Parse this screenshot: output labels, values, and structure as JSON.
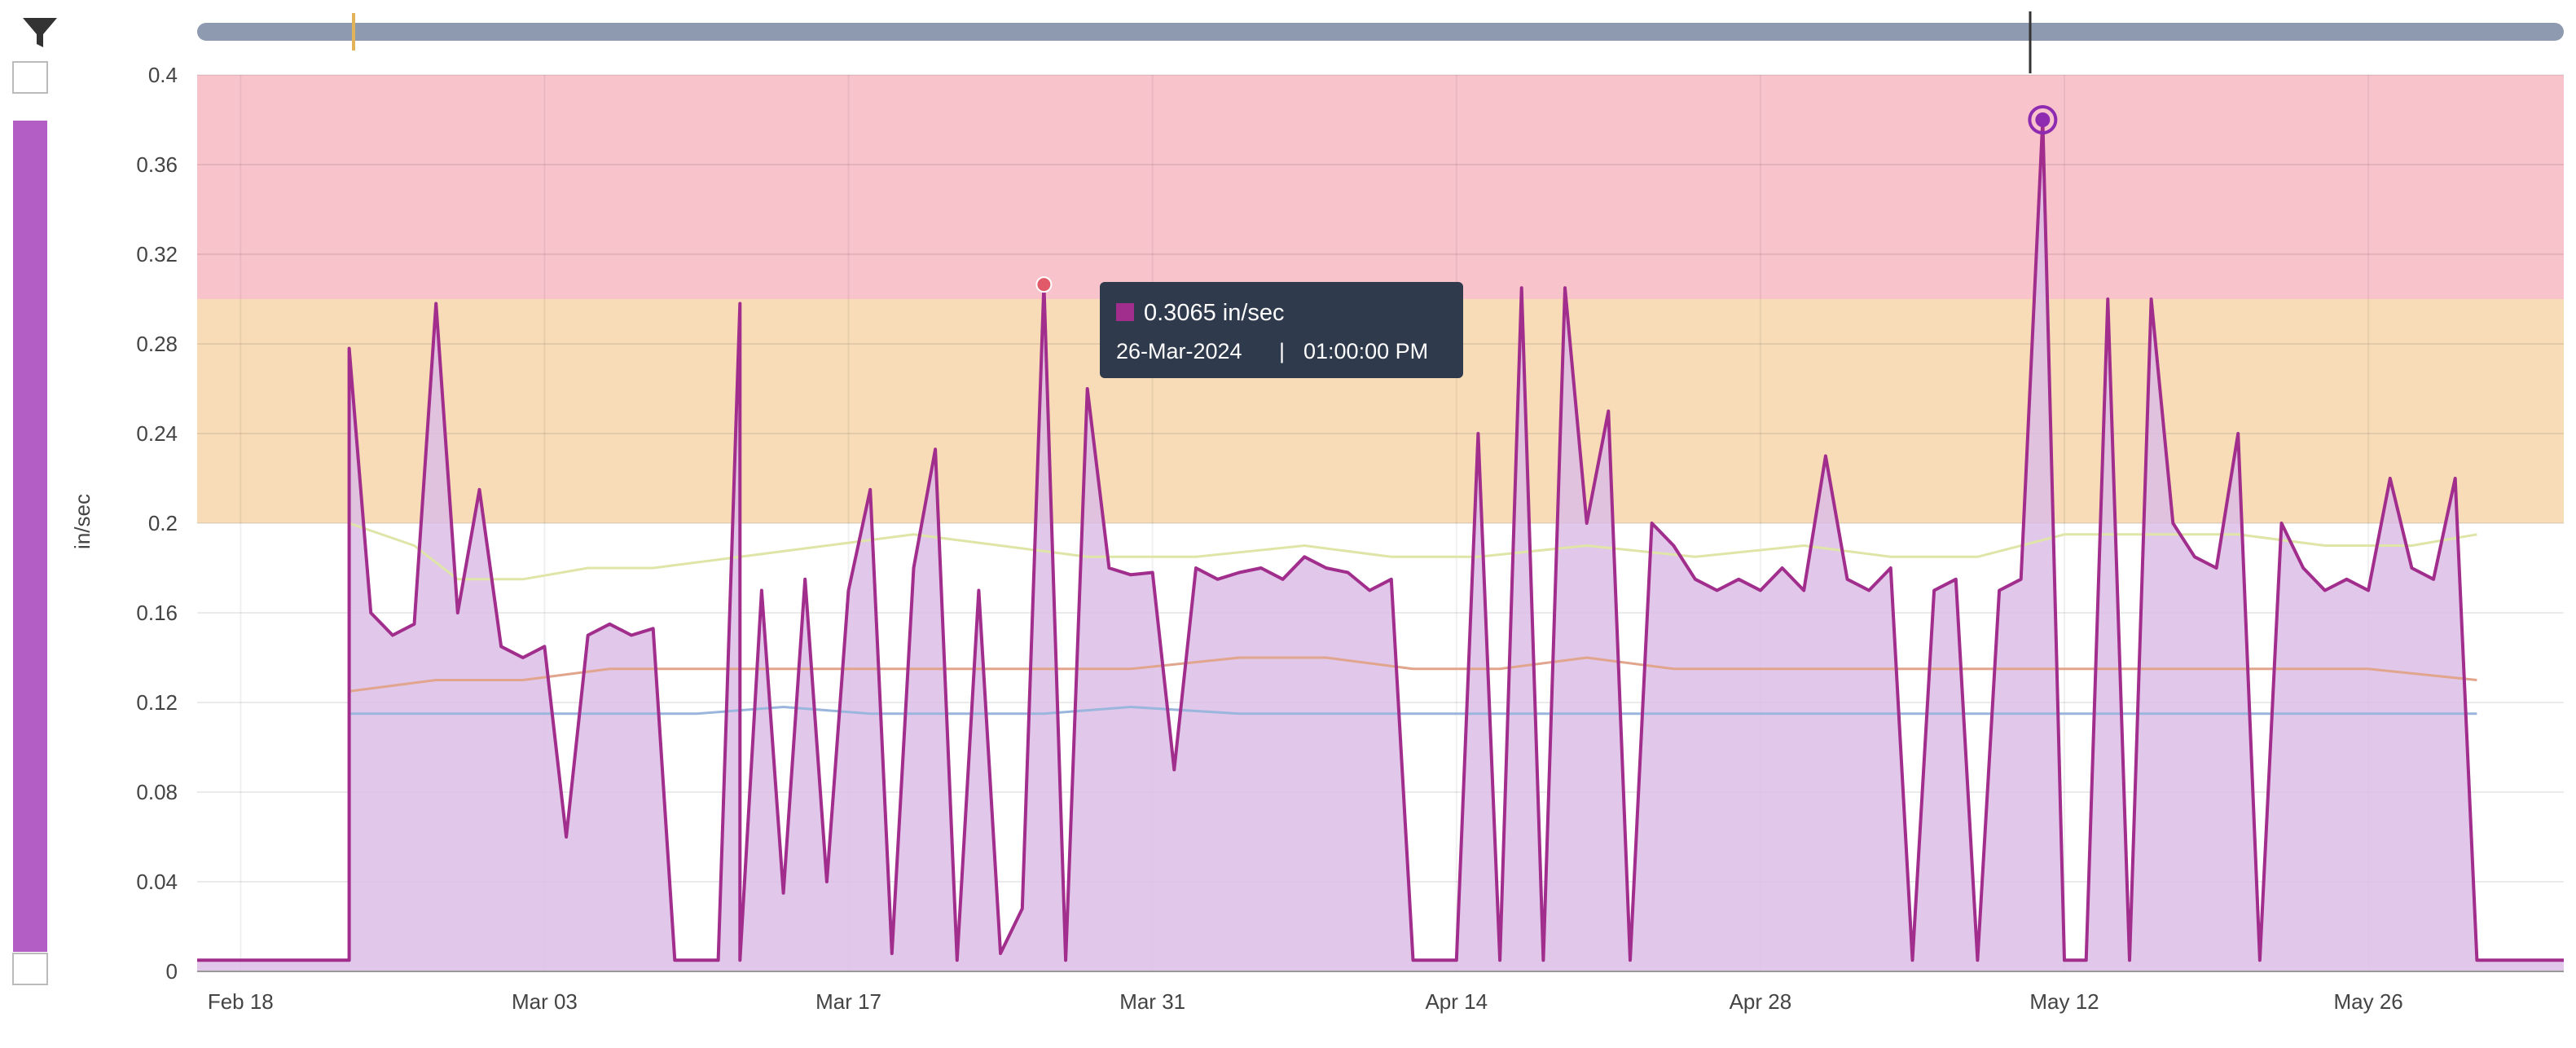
{
  "chart_data": {
    "type": "area",
    "ylabel": "in/sec",
    "ylim": [
      0,
      0.4
    ],
    "yticks": [
      "0",
      "0.04",
      "0.08",
      "0.12",
      "0.16",
      "0.2",
      "0.24",
      "0.28",
      "0.32",
      "0.36",
      "0.4"
    ],
    "xlim": [
      "2024-02-16",
      "2024-06-04"
    ],
    "xticks": [
      {
        "label": "Feb 18",
        "date": "2024-02-18"
      },
      {
        "label": "Mar 03",
        "date": "2024-03-03"
      },
      {
        "label": "Mar 17",
        "date": "2024-03-17"
      },
      {
        "label": "Mar 31",
        "date": "2024-03-31"
      },
      {
        "label": "Apr 14",
        "date": "2024-04-14"
      },
      {
        "label": "Apr 28",
        "date": "2024-04-28"
      },
      {
        "label": "May 12",
        "date": "2024-05-12"
      },
      {
        "label": "May 26",
        "date": "2024-05-26"
      }
    ],
    "bands": [
      {
        "from": 0.3,
        "to": 0.4,
        "color": "#f9c3cc"
      },
      {
        "from": 0.2,
        "to": 0.3,
        "color": "#f7dcb7"
      }
    ],
    "grid": true,
    "series": [
      {
        "color": "#a12d8c",
        "fill": "#dcbde5",
        "points": [
          [
            "2024-02-16",
            0.005
          ],
          [
            "2024-02-19",
            0.005
          ],
          [
            "2024-02-23",
            0.005
          ],
          [
            "2024-02-23",
            0.278
          ],
          [
            "2024-02-24",
            0.16
          ],
          [
            "2024-02-25",
            0.15
          ],
          [
            "2024-02-26",
            0.155
          ],
          [
            "2024-02-27",
            0.298
          ],
          [
            "2024-02-28",
            0.16
          ],
          [
            "2024-02-29",
            0.215
          ],
          [
            "2024-03-01",
            0.145
          ],
          [
            "2024-03-02",
            0.14
          ],
          [
            "2024-03-03",
            0.145
          ],
          [
            "2024-03-04",
            0.06
          ],
          [
            "2024-03-05",
            0.15
          ],
          [
            "2024-03-06",
            0.155
          ],
          [
            "2024-03-07",
            0.15
          ],
          [
            "2024-03-08",
            0.153
          ],
          [
            "2024-03-09",
            0.005
          ],
          [
            "2024-03-10",
            0.005
          ],
          [
            "2024-03-11",
            0.005
          ],
          [
            "2024-03-12",
            0.298
          ],
          [
            "2024-03-12",
            0.005
          ],
          [
            "2024-03-13",
            0.17
          ],
          [
            "2024-03-14",
            0.035
          ],
          [
            "2024-03-15",
            0.175
          ],
          [
            "2024-03-16",
            0.04
          ],
          [
            "2024-03-17",
            0.17
          ],
          [
            "2024-03-18",
            0.215
          ],
          [
            "2024-03-19",
            0.008
          ],
          [
            "2024-03-20",
            0.18
          ],
          [
            "2024-03-21",
            0.233
          ],
          [
            "2024-03-22",
            0.005
          ],
          [
            "2024-03-23",
            0.17
          ],
          [
            "2024-03-24",
            0.008
          ],
          [
            "2024-03-25",
            0.028
          ],
          [
            "2024-03-26",
            0.3065
          ],
          [
            "2024-03-27",
            0.005
          ],
          [
            "2024-03-28",
            0.26
          ],
          [
            "2024-03-29",
            0.18
          ],
          [
            "2024-03-30",
            0.177
          ],
          [
            "2024-03-31",
            0.178
          ],
          [
            "2024-04-01",
            0.09
          ],
          [
            "2024-04-02",
            0.18
          ],
          [
            "2024-04-03",
            0.175
          ],
          [
            "2024-04-04",
            0.178
          ],
          [
            "2024-04-05",
            0.18
          ],
          [
            "2024-04-06",
            0.175
          ],
          [
            "2024-04-07",
            0.185
          ],
          [
            "2024-04-08",
            0.18
          ],
          [
            "2024-04-09",
            0.178
          ],
          [
            "2024-04-10",
            0.17
          ],
          [
            "2024-04-11",
            0.175
          ],
          [
            "2024-04-12",
            0.005
          ],
          [
            "2024-04-13",
            0.005
          ],
          [
            "2024-04-14",
            0.005
          ],
          [
            "2024-04-15",
            0.24
          ],
          [
            "2024-04-16",
            0.005
          ],
          [
            "2024-04-17",
            0.305
          ],
          [
            "2024-04-18",
            0.005
          ],
          [
            "2024-04-19",
            0.305
          ],
          [
            "2024-04-20",
            0.2
          ],
          [
            "2024-04-21",
            0.25
          ],
          [
            "2024-04-22",
            0.005
          ],
          [
            "2024-04-23",
            0.2
          ],
          [
            "2024-04-24",
            0.19
          ],
          [
            "2024-04-25",
            0.175
          ],
          [
            "2024-04-26",
            0.17
          ],
          [
            "2024-04-27",
            0.175
          ],
          [
            "2024-04-28",
            0.17
          ],
          [
            "2024-04-29",
            0.18
          ],
          [
            "2024-04-30",
            0.17
          ],
          [
            "2024-05-01",
            0.23
          ],
          [
            "2024-05-02",
            0.175
          ],
          [
            "2024-05-03",
            0.17
          ],
          [
            "2024-05-04",
            0.18
          ],
          [
            "2024-05-05",
            0.005
          ],
          [
            "2024-05-06",
            0.17
          ],
          [
            "2024-05-07",
            0.175
          ],
          [
            "2024-05-08",
            0.005
          ],
          [
            "2024-05-09",
            0.17
          ],
          [
            "2024-05-10",
            0.175
          ],
          [
            "2024-05-11",
            0.38
          ],
          [
            "2024-05-12",
            0.005
          ],
          [
            "2024-05-13",
            0.005
          ],
          [
            "2024-05-14",
            0.3
          ],
          [
            "2024-05-15",
            0.005
          ],
          [
            "2024-05-16",
            0.3
          ],
          [
            "2024-05-17",
            0.2
          ],
          [
            "2024-05-18",
            0.185
          ],
          [
            "2024-05-19",
            0.18
          ],
          [
            "2024-05-20",
            0.24
          ],
          [
            "2024-05-21",
            0.005
          ],
          [
            "2024-05-22",
            0.2
          ],
          [
            "2024-05-23",
            0.18
          ],
          [
            "2024-05-24",
            0.17
          ],
          [
            "2024-05-25",
            0.175
          ],
          [
            "2024-05-26",
            0.17
          ],
          [
            "2024-05-27",
            0.22
          ],
          [
            "2024-05-28",
            0.18
          ],
          [
            "2024-05-29",
            0.175
          ],
          [
            "2024-05-30",
            0.22
          ],
          [
            "2024-05-31",
            0.005
          ],
          [
            "2024-06-04",
            0.005
          ]
        ]
      },
      {
        "color": "#dfe5a7",
        "points": [
          [
            "2024-02-23",
            0.2
          ],
          [
            "2024-02-26",
            0.19
          ],
          [
            "2024-02-28",
            0.175
          ],
          [
            "2024-03-02",
            0.175
          ],
          [
            "2024-03-05",
            0.18
          ],
          [
            "2024-03-08",
            0.18
          ],
          [
            "2024-03-12",
            0.185
          ],
          [
            "2024-03-16",
            0.19
          ],
          [
            "2024-03-20",
            0.195
          ],
          [
            "2024-03-24",
            0.19
          ],
          [
            "2024-03-28",
            0.185
          ],
          [
            "2024-04-02",
            0.185
          ],
          [
            "2024-04-07",
            0.19
          ],
          [
            "2024-04-11",
            0.185
          ],
          [
            "2024-04-15",
            0.185
          ],
          [
            "2024-04-20",
            0.19
          ],
          [
            "2024-04-25",
            0.185
          ],
          [
            "2024-04-30",
            0.19
          ],
          [
            "2024-05-04",
            0.185
          ],
          [
            "2024-05-08",
            0.185
          ],
          [
            "2024-05-12",
            0.195
          ],
          [
            "2024-05-16",
            0.195
          ],
          [
            "2024-05-20",
            0.195
          ],
          [
            "2024-05-24",
            0.19
          ],
          [
            "2024-05-28",
            0.19
          ],
          [
            "2024-05-31",
            0.195
          ]
        ]
      },
      {
        "color": "#e0a58c",
        "points": [
          [
            "2024-02-23",
            0.125
          ],
          [
            "2024-02-27",
            0.13
          ],
          [
            "2024-03-02",
            0.13
          ],
          [
            "2024-03-06",
            0.135
          ],
          [
            "2024-03-10",
            0.135
          ],
          [
            "2024-03-14",
            0.135
          ],
          [
            "2024-03-18",
            0.135
          ],
          [
            "2024-03-22",
            0.135
          ],
          [
            "2024-03-26",
            0.135
          ],
          [
            "2024-03-30",
            0.135
          ],
          [
            "2024-04-04",
            0.14
          ],
          [
            "2024-04-08",
            0.14
          ],
          [
            "2024-04-12",
            0.135
          ],
          [
            "2024-04-16",
            0.135
          ],
          [
            "2024-04-20",
            0.14
          ],
          [
            "2024-04-24",
            0.135
          ],
          [
            "2024-04-28",
            0.135
          ],
          [
            "2024-05-02",
            0.135
          ],
          [
            "2024-05-06",
            0.135
          ],
          [
            "2024-05-10",
            0.135
          ],
          [
            "2024-05-14",
            0.135
          ],
          [
            "2024-05-18",
            0.135
          ],
          [
            "2024-05-22",
            0.135
          ],
          [
            "2024-05-26",
            0.135
          ],
          [
            "2024-05-31",
            0.13
          ]
        ]
      },
      {
        "color": "#9bb6dd",
        "points": [
          [
            "2024-02-23",
            0.115
          ],
          [
            "2024-02-27",
            0.115
          ],
          [
            "2024-03-02",
            0.115
          ],
          [
            "2024-03-06",
            0.115
          ],
          [
            "2024-03-10",
            0.115
          ],
          [
            "2024-03-14",
            0.118
          ],
          [
            "2024-03-18",
            0.115
          ],
          [
            "2024-03-22",
            0.115
          ],
          [
            "2024-03-26",
            0.115
          ],
          [
            "2024-03-30",
            0.118
          ],
          [
            "2024-04-04",
            0.115
          ],
          [
            "2024-04-08",
            0.115
          ],
          [
            "2024-04-12",
            0.115
          ],
          [
            "2024-04-16",
            0.115
          ],
          [
            "2024-04-20",
            0.115
          ],
          [
            "2024-04-24",
            0.115
          ],
          [
            "2024-04-28",
            0.115
          ],
          [
            "2024-05-02",
            0.115
          ],
          [
            "2024-05-06",
            0.115
          ],
          [
            "2024-05-10",
            0.115
          ],
          [
            "2024-05-14",
            0.115
          ],
          [
            "2024-05-18",
            0.115
          ],
          [
            "2024-05-22",
            0.115
          ],
          [
            "2024-05-26",
            0.115
          ],
          [
            "2024-05-31",
            0.115
          ]
        ]
      }
    ],
    "tooltip": {
      "value": "0.3065 in/sec",
      "date": "26-Mar-2024",
      "separator": "|",
      "time": "01:00:00 PM",
      "x": "2024-03-26",
      "y": 0.3065
    },
    "marker": {
      "x": "2024-05-11",
      "y": 0.38
    }
  },
  "controls": {
    "filter_icon": "funnel-icon",
    "slider_icon": "vertical-range-slider",
    "slider_color": "#b35ec4",
    "range_bar_color": "#8e9aaf"
  }
}
